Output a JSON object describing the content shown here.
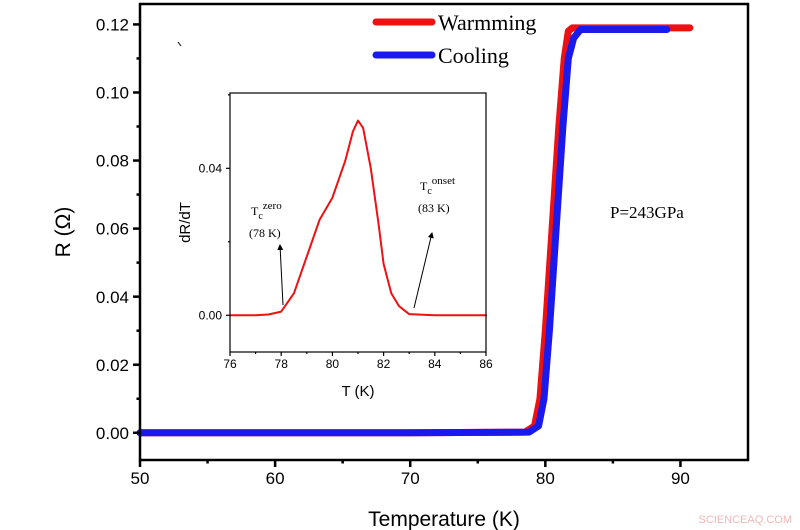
{
  "chart_data": [
    {
      "type": "line",
      "title": "",
      "xlabel": "Temperature (K)",
      "ylabel": "R (Ω)",
      "xlim": [
        50,
        95
      ],
      "ylim": [
        -0.008,
        0.126
      ],
      "xticks": [
        "50",
        "60",
        "70",
        "80",
        "90"
      ],
      "yticks": [
        "0.00",
        "0.02",
        "0.04",
        "0.06",
        "0.08",
        "0.10",
        "0.12"
      ],
      "legend": {
        "placement": "top-right",
        "entries": [
          "Warmming",
          "Cooling"
        ]
      },
      "annotation": "P=243GPa",
      "series": [
        {
          "name": "Warmming",
          "color": "#ee1111",
          "x": [
            50,
            70,
            78.5,
            79.2,
            79.6,
            80,
            80.5,
            81,
            81.4,
            81.7,
            82,
            90.7
          ],
          "y": [
            0,
            0,
            0.0002,
            0.002,
            0.01,
            0.03,
            0.06,
            0.09,
            0.11,
            0.118,
            0.119,
            0.119
          ]
        },
        {
          "name": "Cooling",
          "color": "#1a1aee",
          "x": [
            50,
            70,
            78.8,
            79.5,
            79.9,
            80.3,
            80.8,
            81.3,
            81.7,
            82.1,
            82.6,
            89
          ],
          "y": [
            0,
            0,
            0.0002,
            0.002,
            0.01,
            0.03,
            0.06,
            0.09,
            0.11,
            0.116,
            0.1185,
            0.1185
          ]
        }
      ]
    },
    {
      "type": "line",
      "title": "",
      "xlabel": "T (K)",
      "ylabel": "dR/dT",
      "xlim": [
        76,
        86
      ],
      "ylim": [
        -0.01,
        0.0605
      ],
      "xticks": [
        "76",
        "78",
        "80",
        "82",
        "84",
        "86"
      ],
      "yticks": [
        "0.00",
        "0.04"
      ],
      "annotations": [
        {
          "label": "T",
          "sub": "c",
          "sup": "zero",
          "value": "(78 K)"
        },
        {
          "label": "T",
          "sub": "c",
          "sup": "onset",
          "value": "(83 K)"
        }
      ],
      "series": [
        {
          "name": "dR/dT",
          "color": "#ee1111",
          "x": [
            76,
            77,
            77.5,
            78,
            78.5,
            79,
            79.5,
            80,
            80.5,
            80.8,
            81,
            81.2,
            81.5,
            81.8,
            82,
            82.3,
            82.6,
            83,
            84,
            86
          ],
          "y": [
            0,
            0,
            0.0002,
            0.001,
            0.006,
            0.016,
            0.026,
            0.032,
            0.042,
            0.05,
            0.053,
            0.051,
            0.04,
            0.025,
            0.014,
            0.006,
            0.0025,
            0.0003,
            0,
            0
          ]
        }
      ]
    }
  ],
  "watermark": "SCIENCEAQ.COM"
}
